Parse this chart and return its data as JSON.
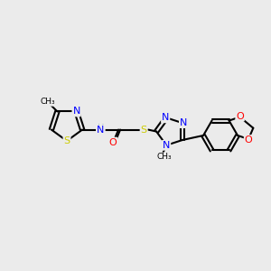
{
  "background_color": "#ebebeb",
  "bond_color": "#000000",
  "atom_colors": {
    "N": "#0000ff",
    "S": "#cccc00",
    "O": "#ff0000",
    "H": "#70a0a0",
    "C": "#000000"
  },
  "figsize": [
    3.0,
    3.0
  ],
  "dpi": 100
}
